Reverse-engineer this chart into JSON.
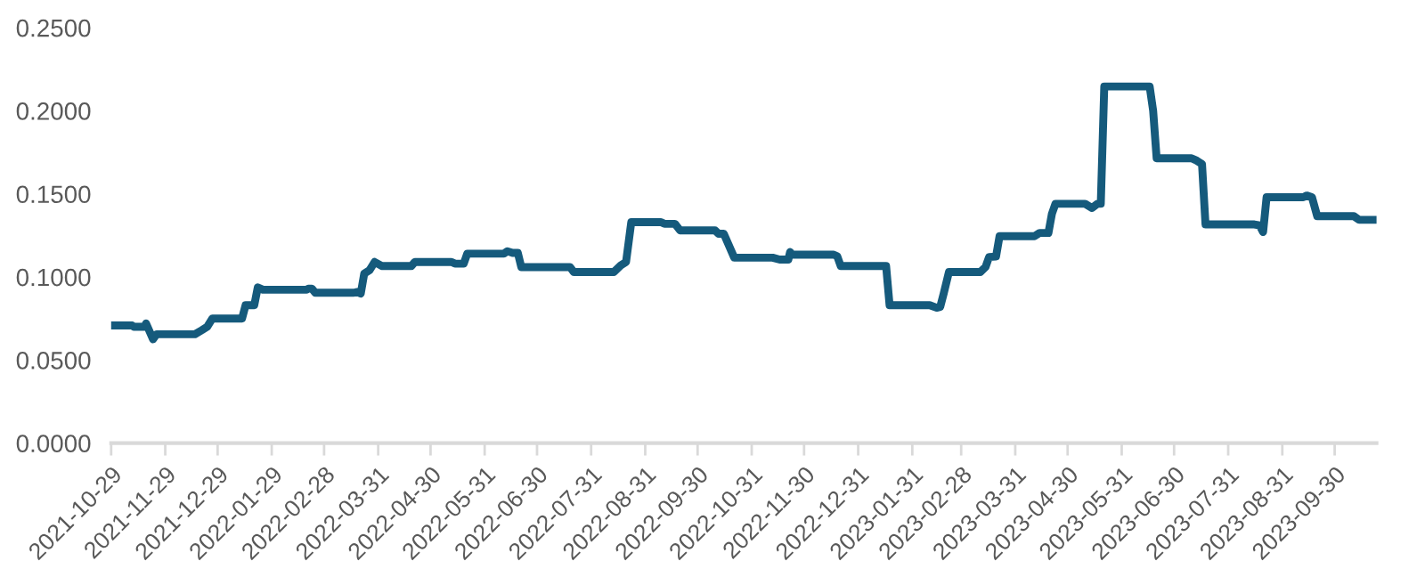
{
  "chart_data": {
    "type": "line",
    "x": [
      "2021-10-29",
      "2021-11-10",
      "2021-11-11",
      "2021-11-17",
      "2021-11-18",
      "2021-11-22",
      "2021-11-24",
      "2021-12-16",
      "2021-12-20",
      "2021-12-23",
      "2021-12-26",
      "2022-01-12",
      "2022-01-14",
      "2022-01-19",
      "2022-01-21",
      "2022-01-24",
      "2022-02-18",
      "2022-02-19",
      "2022-02-21",
      "2022-02-23",
      "2022-03-17",
      "2022-03-19",
      "2022-03-21",
      "2022-03-23",
      "2022-03-26",
      "2022-03-29",
      "2022-04-02",
      "2022-04-19",
      "2022-04-21",
      "2022-05-12",
      "2022-05-14",
      "2022-05-19",
      "2022-05-21",
      "2022-06-11",
      "2022-06-13",
      "2022-06-16",
      "2022-06-19",
      "2022-06-21",
      "2022-07-19",
      "2022-07-21",
      "2022-08-13",
      "2022-08-17",
      "2022-08-20",
      "2022-08-23",
      "2022-09-09",
      "2022-09-11",
      "2022-09-17",
      "2022-09-20",
      "2022-10-10",
      "2022-10-12",
      "2022-10-15",
      "2022-10-21",
      "2022-11-12",
      "2022-11-16",
      "2022-11-21",
      "2022-11-22",
      "2022-11-23",
      "2022-12-17",
      "2022-12-19",
      "2022-12-21",
      "2023-01-16",
      "2023-01-18",
      "2023-02-10",
      "2023-02-14",
      "2023-02-16",
      "2023-02-18",
      "2023-02-21",
      "2023-03-11",
      "2023-03-14",
      "2023-03-16",
      "2023-03-20",
      "2023-03-22",
      "2023-04-11",
      "2023-04-14",
      "2023-04-19",
      "2023-04-21",
      "2023-04-23",
      "2023-05-10",
      "2023-05-14",
      "2023-05-17",
      "2023-05-19",
      "2023-05-21",
      "2023-06-16",
      "2023-06-18",
      "2023-06-20",
      "2023-07-10",
      "2023-07-13",
      "2023-07-16",
      "2023-07-18",
      "2023-08-15",
      "2023-08-18",
      "2023-08-20",
      "2023-08-22",
      "2023-09-12",
      "2023-09-14",
      "2023-09-17",
      "2023-09-20",
      "2023-10-11",
      "2023-10-14",
      "2023-10-24"
    ],
    "series": [
      {
        "color": "#155a7c",
        "values": [
          0.0708,
          0.0708,
          0.07,
          0.07,
          0.072,
          0.0625,
          0.0655,
          0.0655,
          0.068,
          0.07,
          0.075,
          0.075,
          0.083,
          0.083,
          0.0937,
          0.0923,
          0.0923,
          0.093,
          0.093,
          0.0905,
          0.0905,
          0.091,
          0.09,
          0.102,
          0.104,
          0.109,
          0.1066,
          0.1066,
          0.109,
          0.109,
          0.108,
          0.108,
          0.114,
          0.114,
          0.1155,
          0.1145,
          0.1145,
          0.1059,
          0.1059,
          0.103,
          0.103,
          0.107,
          0.109,
          0.133,
          0.133,
          0.132,
          0.132,
          0.128,
          0.128,
          0.126,
          0.126,
          0.1116,
          0.1116,
          0.1105,
          0.1105,
          0.115,
          0.1134,
          0.1134,
          0.1125,
          0.1066,
          0.1066,
          0.083,
          0.083,
          0.0815,
          0.082,
          0.09,
          0.103,
          0.103,
          0.106,
          0.112,
          0.1123,
          0.1245,
          0.1245,
          0.1265,
          0.1265,
          0.138,
          0.144,
          0.144,
          0.1415,
          0.144,
          0.144,
          0.2146,
          0.2146,
          0.2,
          0.1714,
          0.1714,
          0.17,
          0.168,
          0.1316,
          0.1316,
          0.131,
          0.127,
          0.148,
          0.148,
          0.149,
          0.148,
          0.1366,
          0.1366,
          0.1344,
          0.1344
        ]
      }
    ],
    "xlim": [
      "2021-10-29",
      "2023-10-24"
    ],
    "xticks": [
      "2021-10-29",
      "2021-11-29",
      "2021-12-29",
      "2022-01-29",
      "2022-02-28",
      "2022-03-31",
      "2022-04-30",
      "2022-05-31",
      "2022-06-30",
      "2022-07-31",
      "2022-08-31",
      "2022-09-30",
      "2022-10-31",
      "2022-11-30",
      "2022-12-31",
      "2023-01-31",
      "2023-02-28",
      "2023-03-31",
      "2023-04-30",
      "2023-05-31",
      "2023-06-30",
      "2023-07-31",
      "2023-08-31",
      "2023-09-30"
    ],
    "ylim": [
      0,
      0.25
    ],
    "yticks": [
      {
        "value": 0,
        "label": "0.0000"
      },
      {
        "value": 0.05,
        "label": "0.0500"
      },
      {
        "value": 0.1,
        "label": "0.1000"
      },
      {
        "value": 0.15,
        "label": "0.1500"
      },
      {
        "value": 0.2,
        "label": "0.2000"
      },
      {
        "value": 0.25,
        "label": "0.2500"
      }
    ],
    "grid": false,
    "legend": false,
    "marker": "none",
    "line_style": "solid"
  }
}
